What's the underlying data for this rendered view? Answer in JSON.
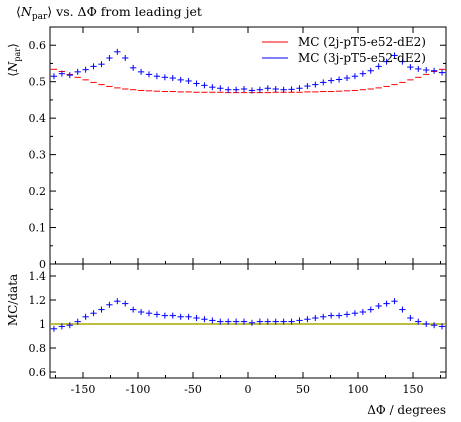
{
  "chart_data": [
    {
      "type": "scatter",
      "title_main": "N",
      "title_sub": "par",
      "title_rest": " vs. ΔΦ from leading jet",
      "ylabel_main": "N",
      "ylabel_sub": "par",
      "xlim": [
        -180,
        180
      ],
      "ylim": [
        0,
        0.65
      ],
      "yticks": [
        0,
        0.1,
        0.2,
        0.3,
        0.4,
        0.5,
        0.6
      ],
      "ytick_labels": [
        "0",
        "0.1",
        "0.2",
        "0.3",
        "0.4",
        "0.5",
        "0.6"
      ],
      "legend_placement": "top-right",
      "series": [
        {
          "name": "MC (2j-pT5-e52-dE2)",
          "color": "#ff0000",
          "x": [
            -176.4,
            -169.2,
            -162,
            -154.8,
            -147.6,
            -140.4,
            -133.2,
            -126,
            -118.8,
            -111.6,
            -104.4,
            -97.2,
            -90,
            -82.8,
            -75.6,
            -68.4,
            -61.2,
            -54,
            -46.8,
            -39.6,
            -32.4,
            -25.2,
            -18,
            -10.8,
            -3.6,
            3.6,
            10.8,
            18,
            25.2,
            32.4,
            39.6,
            46.8,
            54,
            61.2,
            68.4,
            75.6,
            82.8,
            90,
            97.2,
            104.4,
            111.6,
            118.8,
            126,
            133.2,
            140.4,
            147.6,
            154.8,
            162,
            169.2,
            176.4
          ],
          "y": [
            0.534,
            0.528,
            0.52,
            0.512,
            0.505,
            0.498,
            0.492,
            0.487,
            0.483,
            0.48,
            0.478,
            0.476,
            0.475,
            0.474,
            0.473,
            0.473,
            0.472,
            0.472,
            0.471,
            0.471,
            0.471,
            0.471,
            0.47,
            0.47,
            0.47,
            0.47,
            0.47,
            0.47,
            0.471,
            0.471,
            0.471,
            0.471,
            0.472,
            0.472,
            0.473,
            0.473,
            0.474,
            0.475,
            0.476,
            0.478,
            0.48,
            0.483,
            0.487,
            0.492,
            0.498,
            0.505,
            0.512,
            0.52,
            0.528,
            0.534
          ]
        },
        {
          "name": "MC (3j-pT5-e52-dE2)",
          "color": "#0000ff",
          "x": [
            -176.4,
            -169.2,
            -162,
            -154.8,
            -147.6,
            -140.4,
            -133.2,
            -126,
            -118.8,
            -111.6,
            -104.4,
            -97.2,
            -90,
            -82.8,
            -75.6,
            -68.4,
            -61.2,
            -54,
            -46.8,
            -39.6,
            -32.4,
            -25.2,
            -18,
            -10.8,
            -3.6,
            3.6,
            10.8,
            18,
            25.2,
            32.4,
            39.6,
            46.8,
            54,
            61.2,
            68.4,
            75.6,
            82.8,
            90,
            97.2,
            104.4,
            111.6,
            118.8,
            126,
            133.2,
            140.4,
            147.6,
            154.8,
            162,
            169.2,
            176.4
          ],
          "y": [
            0.515,
            0.522,
            0.518,
            0.527,
            0.533,
            0.542,
            0.548,
            0.565,
            0.582,
            0.565,
            0.538,
            0.527,
            0.52,
            0.515,
            0.512,
            0.51,
            0.505,
            0.502,
            0.495,
            0.49,
            0.485,
            0.482,
            0.478,
            0.478,
            0.48,
            0.476,
            0.478,
            0.482,
            0.48,
            0.478,
            0.479,
            0.482,
            0.488,
            0.492,
            0.498,
            0.503,
            0.506,
            0.51,
            0.515,
            0.522,
            0.53,
            0.542,
            0.555,
            0.572,
            0.555,
            0.54,
            0.535,
            0.532,
            0.53,
            0.525
          ]
        }
      ]
    },
    {
      "type": "scatter",
      "ylabel": "MC/data",
      "xlabel": "ΔΦ / degrees",
      "xlim": [
        -180,
        180
      ],
      "ylim": [
        0.55,
        1.5
      ],
      "xticks": [
        -150,
        -100,
        -50,
        0,
        50,
        100,
        150
      ],
      "xtick_labels": [
        "-150",
        "-100",
        "-50",
        "0",
        "50",
        "100",
        "150"
      ],
      "yticks": [
        0.6,
        0.8,
        1,
        1.2,
        1.4
      ],
      "ytick_labels": [
        "0.6",
        "0.8",
        "1",
        "1.2",
        "1.4"
      ],
      "reference_line": {
        "y": 1,
        "color": "#a8a800"
      },
      "series": [
        {
          "color": "#0000ff",
          "x": [
            -176.4,
            -169.2,
            -162,
            -154.8,
            -147.6,
            -140.4,
            -133.2,
            -126,
            -118.8,
            -111.6,
            -104.4,
            -97.2,
            -90,
            -82.8,
            -75.6,
            -68.4,
            -61.2,
            -54,
            -46.8,
            -39.6,
            -32.4,
            -25.2,
            -18,
            -10.8,
            -3.6,
            3.6,
            10.8,
            18,
            25.2,
            32.4,
            39.6,
            46.8,
            54,
            61.2,
            68.4,
            75.6,
            82.8,
            90,
            97.2,
            104.4,
            111.6,
            118.8,
            126,
            133.2,
            140.4,
            147.6,
            154.8,
            162,
            169.2,
            176.4
          ],
          "y": [
            0.96,
            0.98,
            0.99,
            1.02,
            1.06,
            1.09,
            1.12,
            1.16,
            1.19,
            1.17,
            1.12,
            1.1,
            1.09,
            1.08,
            1.07,
            1.07,
            1.06,
            1.06,
            1.05,
            1.04,
            1.03,
            1.02,
            1.02,
            1.02,
            1.02,
            1.01,
            1.02,
            1.02,
            1.02,
            1.02,
            1.02,
            1.03,
            1.04,
            1.05,
            1.06,
            1.07,
            1.07,
            1.08,
            1.09,
            1.1,
            1.12,
            1.15,
            1.17,
            1.19,
            1.12,
            1.05,
            1.02,
            1.0,
            0.99,
            0.98
          ]
        }
      ]
    }
  ]
}
